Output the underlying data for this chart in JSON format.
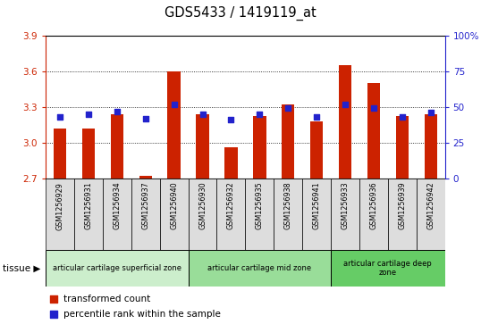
{
  "title": "GDS5433 / 1419119_at",
  "samples": [
    "GSM1256929",
    "GSM1256931",
    "GSM1256934",
    "GSM1256937",
    "GSM1256940",
    "GSM1256930",
    "GSM1256932",
    "GSM1256935",
    "GSM1256938",
    "GSM1256941",
    "GSM1256933",
    "GSM1256936",
    "GSM1256939",
    "GSM1256942"
  ],
  "bar_values": [
    3.12,
    3.12,
    3.24,
    2.72,
    3.6,
    3.24,
    2.96,
    3.22,
    3.32,
    3.18,
    3.65,
    3.5,
    3.22,
    3.24
  ],
  "percentile_values": [
    43,
    45,
    47,
    42,
    52,
    45,
    41,
    45,
    49,
    43,
    52,
    49,
    43,
    46
  ],
  "bar_color": "#cc2200",
  "dot_color": "#2222cc",
  "ylim_left": [
    2.7,
    3.9
  ],
  "ylim_right": [
    0,
    100
  ],
  "yticks_left": [
    2.7,
    3.0,
    3.3,
    3.6,
    3.9
  ],
  "yticks_right": [
    0,
    25,
    50,
    75,
    100
  ],
  "ytick_labels_right": [
    "0",
    "25",
    "50",
    "75",
    "100%"
  ],
  "grid_values": [
    3.0,
    3.3,
    3.6
  ],
  "groups": [
    {
      "label": "articular cartilage superficial zone",
      "start": 0,
      "end": 5,
      "color": "#cceecc"
    },
    {
      "label": "articular cartilage mid zone",
      "start": 5,
      "end": 10,
      "color": "#99dd99"
    },
    {
      "label": "articular cartilage deep\nzone",
      "start": 10,
      "end": 14,
      "color": "#66cc66"
    }
  ],
  "tissue_label": "tissue",
  "legend_bar_label": "transformed count",
  "legend_dot_label": "percentile rank within the sample",
  "axes_color_left": "#cc2200",
  "axes_color_right": "#2222cc",
  "xticklabels_bg": "#dddddd"
}
